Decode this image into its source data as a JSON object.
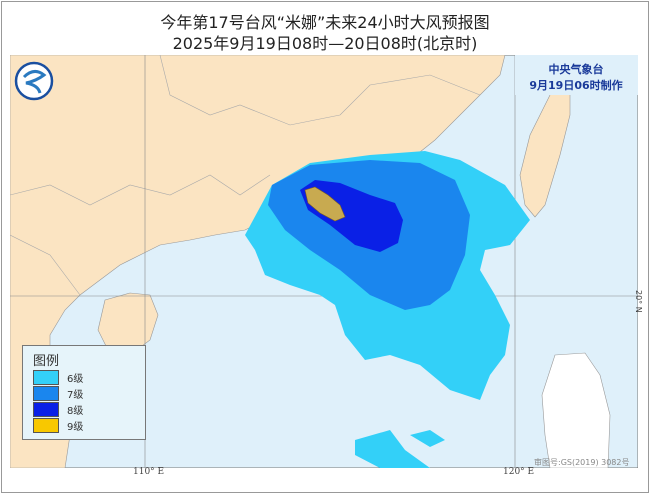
{
  "title": {
    "line1": "今年第17号台风“米娜”未来24小时大风预报图",
    "line2": "2025年9月19日08时—20日08时(北京时)"
  },
  "agency": {
    "name": "中央气象台",
    "issued": "9月19日06时制作"
  },
  "legend": {
    "title": "图例",
    "items": [
      {
        "label": "6级",
        "color": "#33d0f8"
      },
      {
        "label": "7级",
        "color": "#1a86ee"
      },
      {
        "label": "8级",
        "color": "#0a20e6"
      },
      {
        "label": "9级",
        "color": "#f8c800"
      }
    ]
  },
  "axes": {
    "lon_110": "110° E",
    "lon_120": "120° E",
    "lat_20": "20° N"
  },
  "map_approval": "审图号:GS(2019) 3082号",
  "colors": {
    "land": "#fbe4c2",
    "sea": "#dff0fa",
    "foreign_land": "#ffffff"
  }
}
